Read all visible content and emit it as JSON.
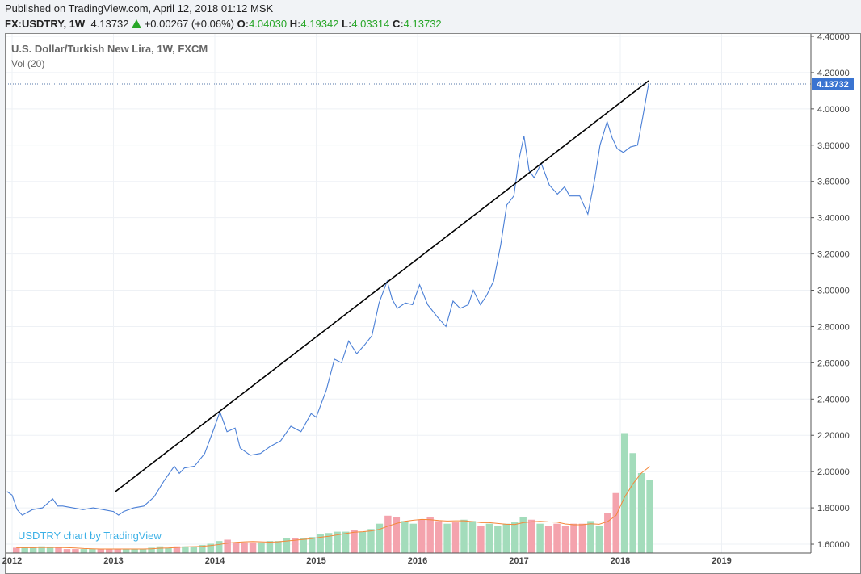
{
  "header": {
    "published": "Published on TradingView.com, April 12, 2018 01:12 MSK",
    "symbol": "FX:USDTRY, 1W",
    "last": "4.13732",
    "change": "+0.00267 (+0.06%)",
    "o_label": "O:",
    "o": "4.04030",
    "h_label": "H:",
    "h": "4.19342",
    "l_label": "L:",
    "l": "4.03314",
    "c_label": "C:",
    "c": "4.13732"
  },
  "legend": {
    "title": "U.S. Dollar/Turkish New Lira, 1W, FXCM",
    "volume": "Vol (20)"
  },
  "watermark": "USDTRY chart by TradingView",
  "colors": {
    "price": "#4a7fd6",
    "trend": "#000000",
    "up": "#a3dcbb",
    "down": "#f4a3ad",
    "ma": "#f5873a",
    "label_bg": "#3a74d1"
  },
  "chart_data": {
    "type": "line",
    "ylim": [
      1.6,
      4.4
    ],
    "yticks": [
      "4.40000",
      "4.20000",
      "4.00000",
      "3.80000",
      "3.60000",
      "3.40000",
      "3.20000",
      "3.00000",
      "2.80000",
      "2.60000",
      "2.40000",
      "2.20000",
      "2.00000",
      "1.80000",
      "1.60000"
    ],
    "yticks_values": [
      4.4,
      4.2,
      4.0,
      3.8,
      3.6,
      3.4,
      3.2,
      3.0,
      2.8,
      2.6,
      2.4,
      2.2,
      2.0,
      1.8,
      1.6
    ],
    "xlim": [
      2011.95,
      2019.9
    ],
    "xticks": [
      "2012",
      "2013",
      "2014",
      "2015",
      "2016",
      "2017",
      "2018",
      "2019"
    ],
    "last_price_label": "4.13732",
    "last_price": 4.13732,
    "price": [
      [
        2011.95,
        1.89
      ],
      [
        2012.0,
        1.87
      ],
      [
        2012.05,
        1.79
      ],
      [
        2012.1,
        1.76
      ],
      [
        2012.2,
        1.79
      ],
      [
        2012.3,
        1.8
      ],
      [
        2012.4,
        1.85
      ],
      [
        2012.45,
        1.81
      ],
      [
        2012.5,
        1.81
      ],
      [
        2012.6,
        1.8
      ],
      [
        2012.7,
        1.79
      ],
      [
        2012.8,
        1.8
      ],
      [
        2012.9,
        1.79
      ],
      [
        2013.0,
        1.78
      ],
      [
        2013.05,
        1.76
      ],
      [
        2013.1,
        1.78
      ],
      [
        2013.2,
        1.8
      ],
      [
        2013.3,
        1.81
      ],
      [
        2013.4,
        1.86
      ],
      [
        2013.5,
        1.95
      ],
      [
        2013.6,
        2.03
      ],
      [
        2013.65,
        1.99
      ],
      [
        2013.7,
        2.02
      ],
      [
        2013.8,
        2.03
      ],
      [
        2013.9,
        2.1
      ],
      [
        2014.0,
        2.25
      ],
      [
        2014.05,
        2.33
      ],
      [
        2014.12,
        2.22
      ],
      [
        2014.2,
        2.24
      ],
      [
        2014.25,
        2.13
      ],
      [
        2014.35,
        2.09
      ],
      [
        2014.45,
        2.1
      ],
      [
        2014.55,
        2.14
      ],
      [
        2014.65,
        2.17
      ],
      [
        2014.75,
        2.25
      ],
      [
        2014.85,
        2.22
      ],
      [
        2014.95,
        2.32
      ],
      [
        2015.0,
        2.3
      ],
      [
        2015.1,
        2.45
      ],
      [
        2015.18,
        2.62
      ],
      [
        2015.25,
        2.6
      ],
      [
        2015.32,
        2.72
      ],
      [
        2015.4,
        2.65
      ],
      [
        2015.48,
        2.7
      ],
      [
        2015.55,
        2.75
      ],
      [
        2015.62,
        2.93
      ],
      [
        2015.7,
        3.05
      ],
      [
        2015.75,
        2.95
      ],
      [
        2015.8,
        2.9
      ],
      [
        2015.88,
        2.93
      ],
      [
        2015.95,
        2.92
      ],
      [
        2016.02,
        3.03
      ],
      [
        2016.1,
        2.92
      ],
      [
        2016.2,
        2.85
      ],
      [
        2016.28,
        2.8
      ],
      [
        2016.35,
        2.94
      ],
      [
        2016.42,
        2.9
      ],
      [
        2016.5,
        2.92
      ],
      [
        2016.55,
        3.0
      ],
      [
        2016.62,
        2.92
      ],
      [
        2016.68,
        2.97
      ],
      [
        2016.75,
        3.05
      ],
      [
        2016.82,
        3.25
      ],
      [
        2016.88,
        3.47
      ],
      [
        2016.95,
        3.52
      ],
      [
        2017.0,
        3.72
      ],
      [
        2017.05,
        3.85
      ],
      [
        2017.1,
        3.66
      ],
      [
        2017.15,
        3.62
      ],
      [
        2017.22,
        3.7
      ],
      [
        2017.3,
        3.58
      ],
      [
        2017.38,
        3.53
      ],
      [
        2017.45,
        3.57
      ],
      [
        2017.5,
        3.52
      ],
      [
        2017.6,
        3.52
      ],
      [
        2017.68,
        3.42
      ],
      [
        2017.75,
        3.62
      ],
      [
        2017.8,
        3.8
      ],
      [
        2017.87,
        3.93
      ],
      [
        2017.92,
        3.84
      ],
      [
        2017.97,
        3.78
      ],
      [
        2018.03,
        3.76
      ],
      [
        2018.1,
        3.79
      ],
      [
        2018.17,
        3.8
      ],
      [
        2018.22,
        3.95
      ],
      [
        2018.28,
        4.14
      ]
    ],
    "trendline": [
      [
        2013.02,
        1.89
      ],
      [
        2018.28,
        4.155
      ]
    ],
    "volume": {
      "start": 2012.0,
      "step": 0.08333,
      "max": 100,
      "values": [
        4,
        4,
        4,
        5,
        4,
        4,
        3,
        3,
        3,
        3,
        3,
        3,
        3,
        3,
        3,
        3,
        4,
        5,
        4,
        5,
        5,
        5,
        6,
        7,
        9,
        10,
        8,
        8,
        8,
        8,
        9,
        9,
        11,
        11,
        11,
        12,
        14,
        15,
        16,
        16,
        17,
        16,
        18,
        22,
        28,
        27,
        24,
        22,
        25,
        27,
        24,
        22,
        23,
        25,
        24,
        20,
        22,
        20,
        22,
        23,
        27,
        25,
        22,
        20,
        22,
        20,
        22,
        22,
        24,
        20,
        30,
        45,
        90,
        75,
        60,
        55
      ]
    }
  }
}
